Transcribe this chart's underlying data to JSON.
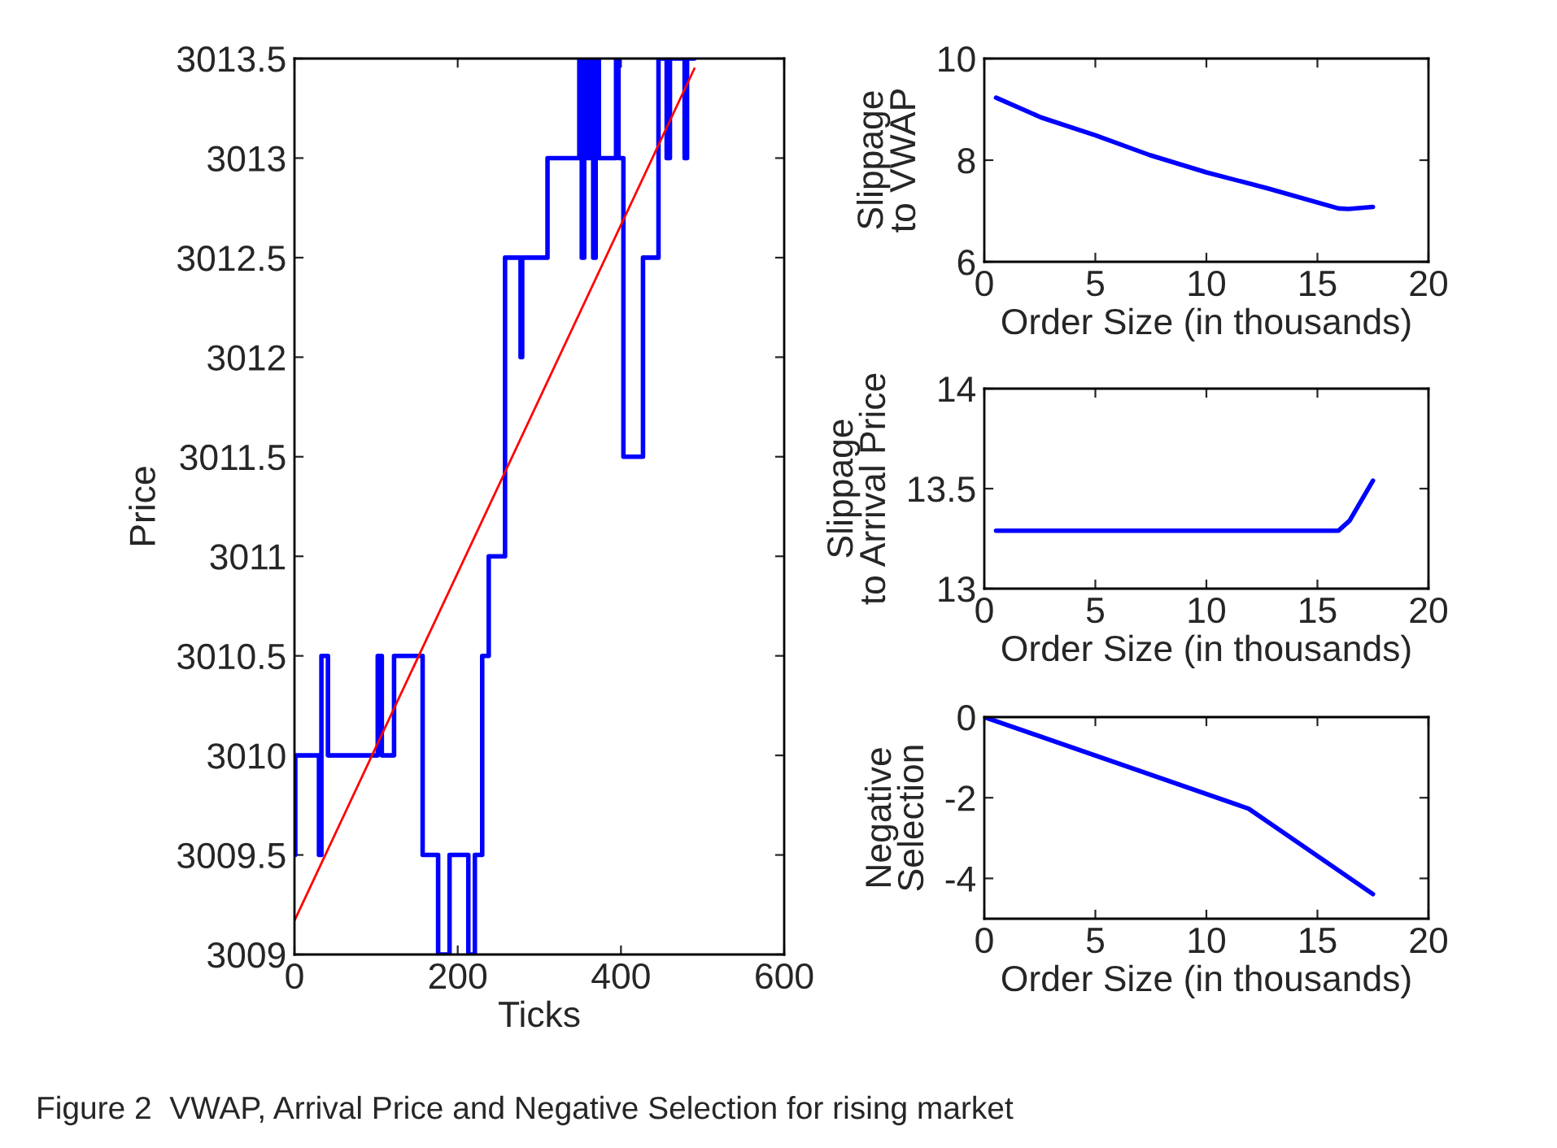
{
  "chart_data": [
    {
      "type": "step",
      "xlabel": "Ticks",
      "ylabel": "Price",
      "xlim": [
        0,
        600
      ],
      "xticks": [
        0,
        200,
        400,
        600
      ],
      "ylim": [
        3009,
        3013.5
      ],
      "yticks": [
        3009,
        3009.5,
        3010,
        3010.5,
        3011,
        3011.5,
        3012,
        3012.5,
        3013,
        3013.5
      ],
      "annotations": [
        "Figure 2  VWAP, Arrival Price and Negative Selection for rising market"
      ],
      "series": [
        {
          "color": "#0000ff",
          "x": [
            0,
            1,
            30,
            33,
            41,
            102,
            107,
            122,
            157,
            176,
            190,
            213,
            221,
            230,
            238,
            258,
            277,
            279,
            310,
            349,
            352,
            355,
            359,
            362,
            366,
            369,
            373,
            394,
            397,
            403,
            427,
            446,
            456,
            460,
            478,
            481,
            490
          ],
          "values": [
            3009.5,
            3010,
            3009.5,
            3010.5,
            3010,
            3010.5,
            3010,
            3010.5,
            3009.5,
            3009,
            3009.5,
            3009,
            3009.5,
            3010.5,
            3011,
            3012.5,
            3012,
            3012.5,
            3013,
            3013.5,
            3012.5,
            3013.5,
            3013,
            3013.5,
            3012.5,
            3013.5,
            3013,
            3013.5,
            3013,
            3011.5,
            3012.5,
            3013.5,
            3013,
            3013.5,
            3013,
            3013.5,
            3013.5
          ]
        },
        {
          "type": "line",
          "color": "#ff0000",
          "x": [
            0,
            490
          ],
          "values": [
            3009.17,
            3013.45
          ]
        }
      ]
    },
    {
      "type": "line",
      "xlabel": "Order Size (in thousands)",
      "ylabel": "Slippage\nto VWAP",
      "xlim": [
        0,
        20
      ],
      "xticks": [
        0,
        5,
        10,
        15,
        20
      ],
      "ylim": [
        6,
        10
      ],
      "yticks": [
        6,
        8,
        10
      ],
      "series": [
        {
          "color": "#0000ff",
          "x": [
            0.53,
            2.56,
            5.0,
            7.45,
            10.0,
            12.8,
            15.95,
            16.4,
            17.5
          ],
          "values": [
            9.23,
            8.84,
            8.49,
            8.1,
            7.76,
            7.44,
            7.05,
            7.04,
            7.08
          ]
        }
      ]
    },
    {
      "type": "line",
      "xlabel": "Order Size (in thousands)",
      "ylabel": "Slippage\nto Arrival Price",
      "xlim": [
        0,
        20
      ],
      "xticks": [
        0,
        5,
        10,
        15,
        20
      ],
      "ylim": [
        13,
        14
      ],
      "yticks": [
        13,
        13.5,
        14
      ],
      "series": [
        {
          "color": "#0000ff",
          "x": [
            0.53,
            15.95,
            16.45,
            17.5
          ],
          "values": [
            13.29,
            13.29,
            13.34,
            13.54
          ]
        }
      ]
    },
    {
      "type": "line",
      "xlabel": "Order Size (in thousands)",
      "ylabel": "Negative\nSelection",
      "xlim": [
        0,
        20
      ],
      "xticks": [
        0,
        5,
        10,
        15,
        20
      ],
      "ylim": [
        -5,
        0
      ],
      "yticks": [
        -4,
        -2,
        0
      ],
      "series": [
        {
          "color": "#0000ff",
          "x": [
            0,
            11.9,
            17.5
          ],
          "values": [
            0,
            -2.27,
            -4.39
          ]
        }
      ]
    }
  ]
}
